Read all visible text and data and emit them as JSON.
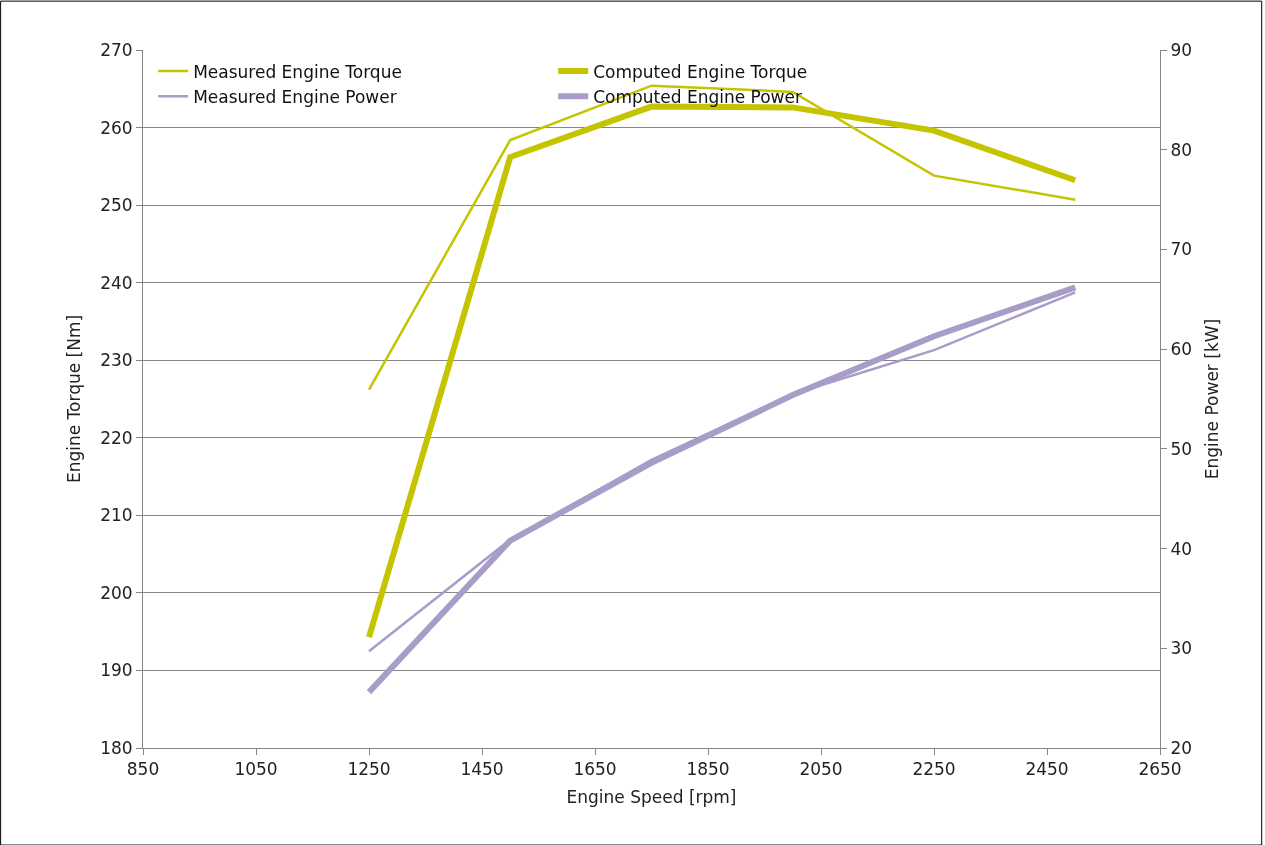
{
  "chart_data": {
    "type": "line",
    "xlabel": "Engine Speed [rpm]",
    "ylabel": "Engine Torque [Nm]",
    "y2label": "Engine Power [kW]",
    "x": [
      1250,
      1500,
      1750,
      2000,
      2250,
      2500
    ],
    "series": [
      {
        "name": "Measured Engine Torque",
        "color": "#c4c400",
        "values": [
          226.2,
          258.4,
          265.4,
          264.6,
          253.8,
          250.7
        ]
      },
      {
        "name": "Computed Engine Torque",
        "color": "#c4c400",
        "values": [
          194.3,
          256.2,
          262.7,
          262.6,
          259.6,
          253.2
        ]
      },
      {
        "name": "Measured Engine Power",
        "color": "#a89cc8",
        "axis": "y2",
        "values": [
          29.7,
          40.9,
          48.9,
          55.5,
          59.9,
          65.7
        ]
      },
      {
        "name": "Computed Engine Power",
        "color": "#a89cc8",
        "axis": "y2",
        "values": [
          25.6,
          40.8,
          48.6,
          55.4,
          61.3,
          66.2
        ]
      }
    ],
    "xlim": [
      850,
      2650
    ],
    "xticks": [
      850,
      1050,
      1250,
      1450,
      1650,
      1850,
      2050,
      2250,
      2450,
      2650
    ],
    "ylim": [
      180,
      270
    ],
    "yticks": [
      180,
      190,
      200,
      210,
      220,
      230,
      240,
      250,
      260,
      270
    ],
    "y2lim": [
      20,
      90
    ],
    "y2ticks": [
      20,
      30,
      40,
      50,
      60,
      70,
      80,
      90
    ],
    "grid": "y",
    "legend": "top left",
    "marker": "none",
    "line_style": "solid"
  }
}
